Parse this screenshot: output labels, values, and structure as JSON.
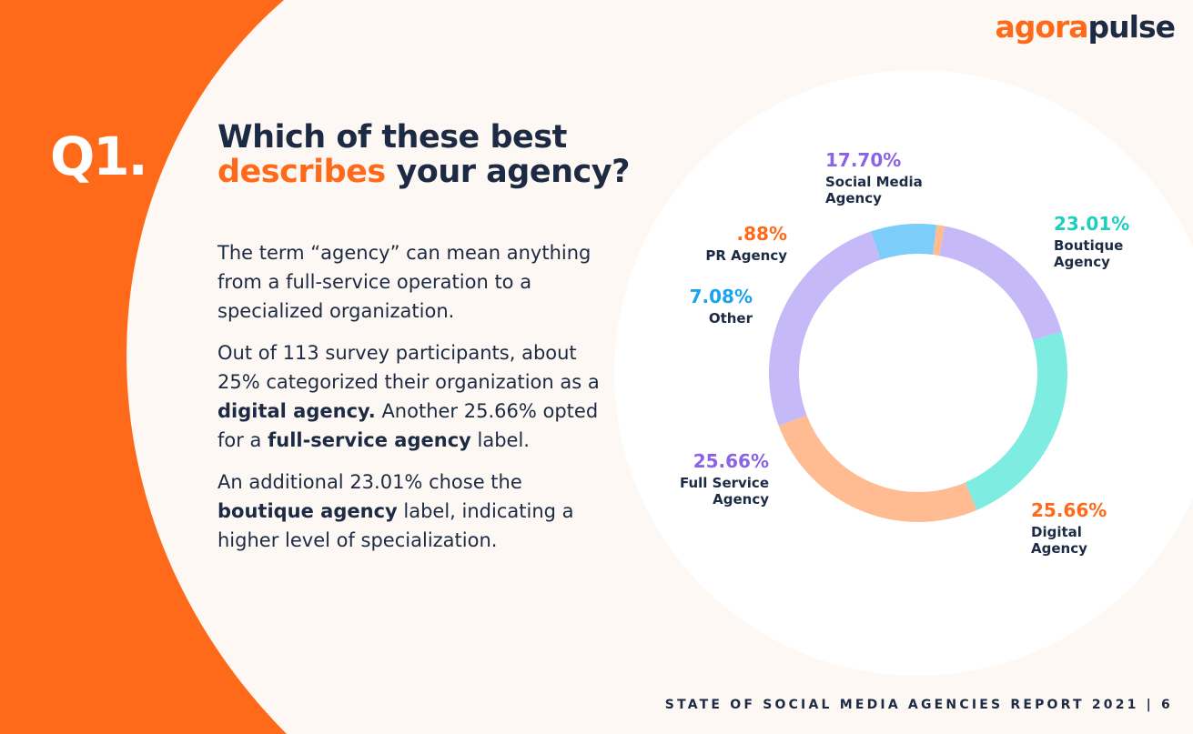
{
  "logo": {
    "part1": "agora",
    "part2": "pulse"
  },
  "question_number": "Q1.",
  "heading": {
    "line1": "Which of these best",
    "accent": "describes",
    "rest": "your agency?"
  },
  "paragraphs": {
    "p1": "The term “agency” can mean anything from a full-service operation to a specialized organization.",
    "p2_a": "Out of 113 survey participants, about 25% categorized their organization as a ",
    "p2_b": "digital agency.",
    "p2_c": " Another 25.66% opted for a ",
    "p2_d": "full-service agency",
    "p2_e": " label.",
    "p3_a": "An additional 23.01% chose the ",
    "p3_b": "boutique agency",
    "p3_c": " label, indicating a higher level of specialization."
  },
  "footer": "STATE OF SOCIAL MEDIA AGENCIES REPORT 2021 | 6",
  "colors": {
    "orange": "#ff6a1a",
    "navy": "#1c2a44",
    "cream": "#fdf8f3",
    "circle": "#ffffff"
  },
  "chart_data": {
    "type": "pie",
    "variant": "donut",
    "slices": [
      {
        "label_lines": [
          "Boutique",
          "Agency"
        ],
        "value": 23.01,
        "display": "23.01%",
        "color": "#7eece1",
        "label_color": "#1fcfbe"
      },
      {
        "label_lines": [
          "Digital",
          "Agency"
        ],
        "value": 25.66,
        "display": "25.66%",
        "color": "#ffbb92",
        "label_color": "#ff6a1a"
      },
      {
        "label_lines": [
          "Full Service",
          "Agency"
        ],
        "value": 25.66,
        "display": "25.66%",
        "color": "#c5b9f7",
        "label_color": "#8a63e8"
      },
      {
        "label_lines": [
          "Other"
        ],
        "value": 7.08,
        "display": "7.08%",
        "color": "#7ccdf9",
        "label_color": "#1aa3ee"
      },
      {
        "label_lines": [
          "PR Agency"
        ],
        "value": 0.88,
        "display": ".88%",
        "color": "#ffbb92",
        "label_color": "#ff6a1a"
      },
      {
        "label_lines": [
          "Social Media",
          "Agency"
        ],
        "value": 17.7,
        "display": "17.70%",
        "color": "#c5b9f7",
        "label_color": "#8a63e8"
      }
    ]
  }
}
